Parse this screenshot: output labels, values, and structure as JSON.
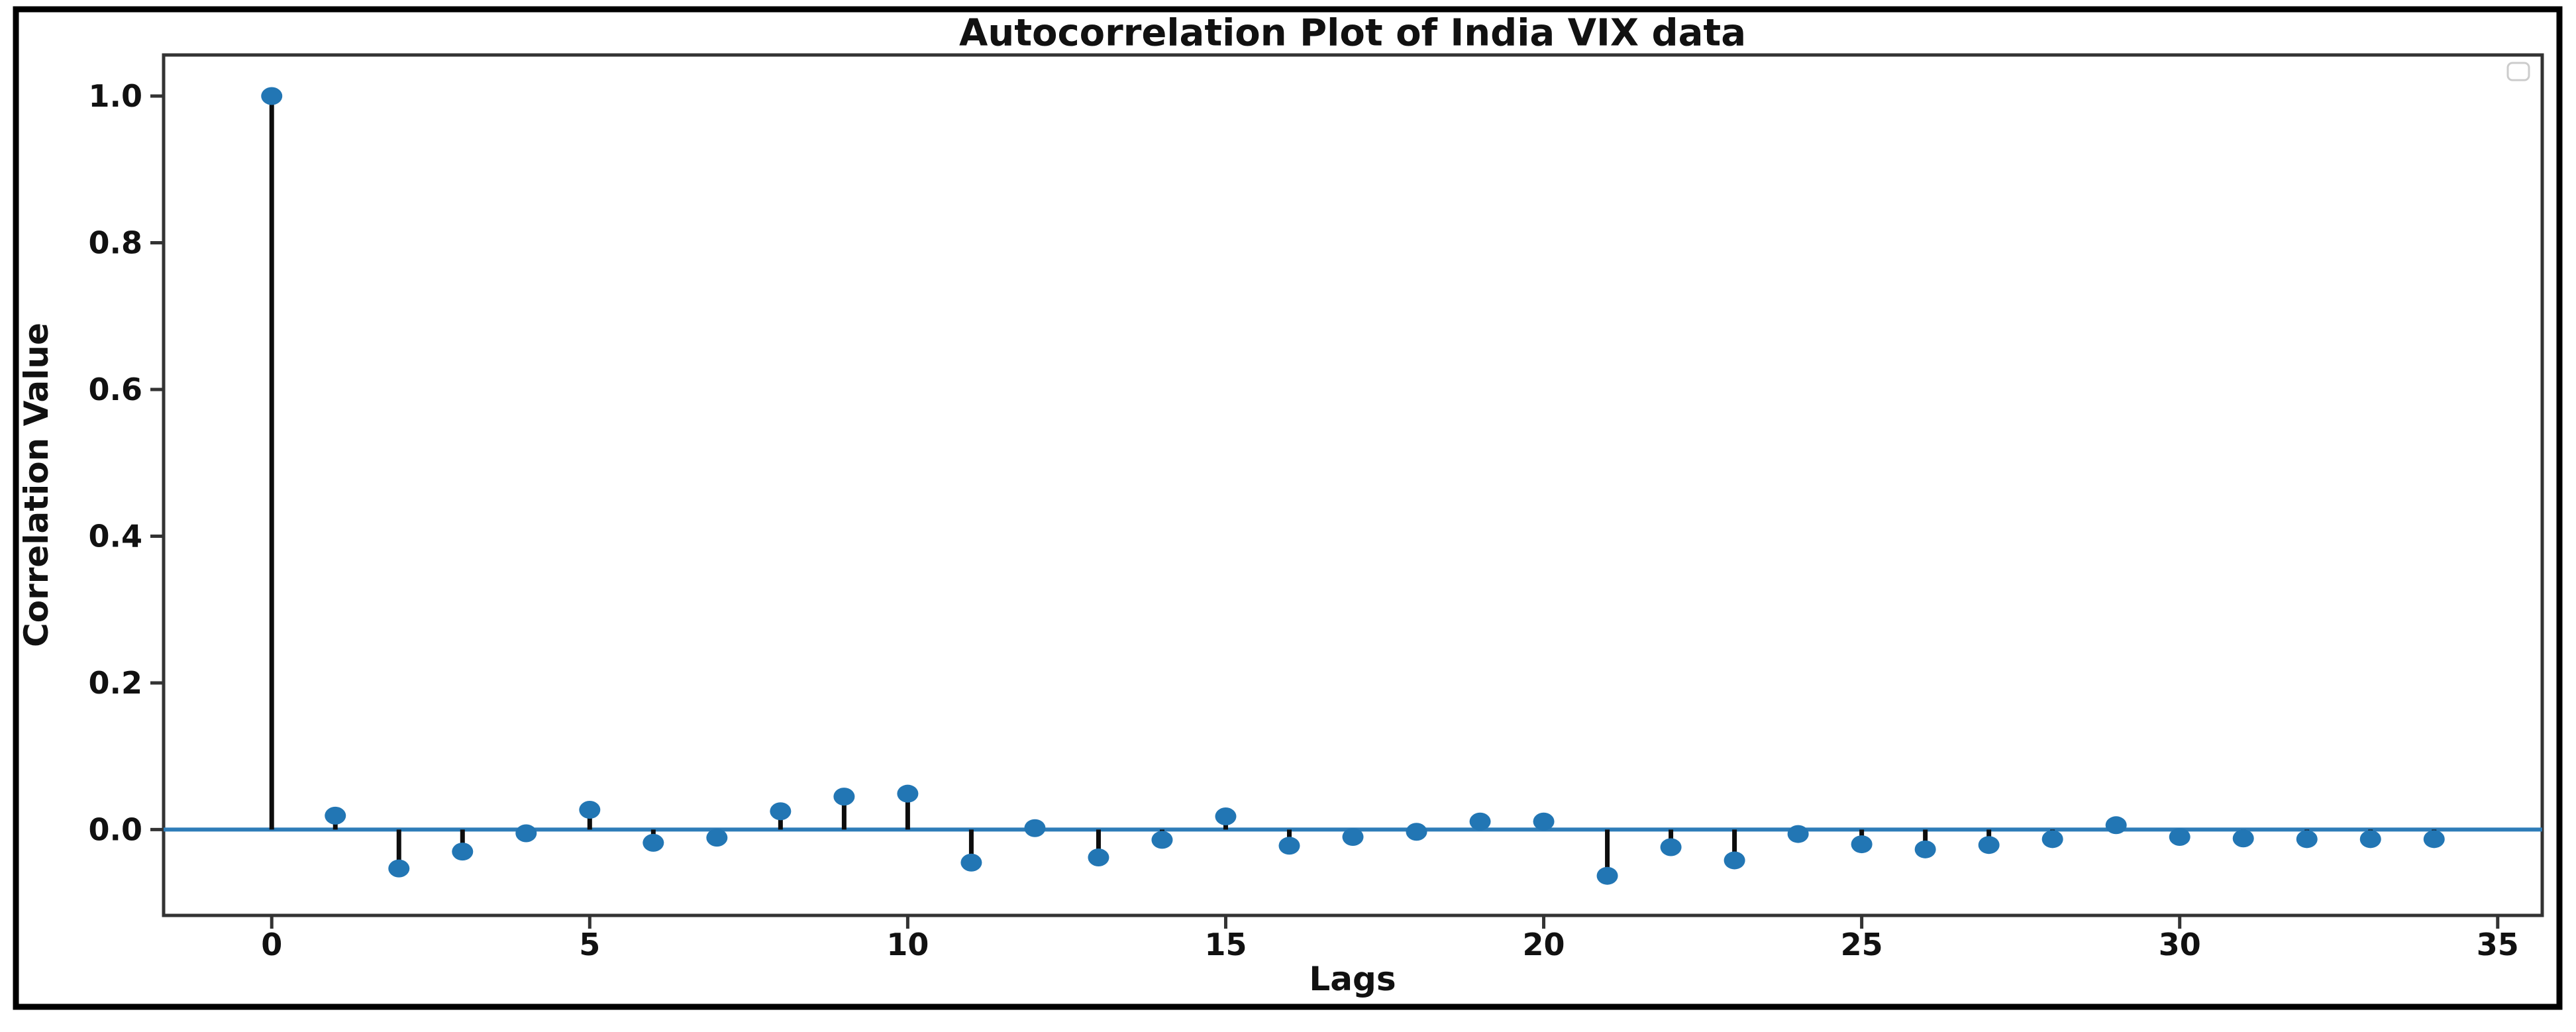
{
  "figure": {
    "background": "#ffffff",
    "border_color": "#000000"
  },
  "chart_data": {
    "type": "scatter",
    "subtype": "stem-plot (autocorrelation, markers on black stems with zero baseline)",
    "title": "Autocorrelation Plot of India VIX data",
    "xlabel": "Lags",
    "ylabel": "Correlation Value",
    "x": [
      0,
      1,
      2,
      3,
      4,
      5,
      6,
      7,
      8,
      9,
      10,
      11,
      12,
      13,
      14,
      15,
      16,
      17,
      18,
      19,
      20,
      21,
      22,
      23,
      24,
      25,
      26,
      27,
      28,
      29,
      30,
      31,
      32,
      33,
      34
    ],
    "values": [
      1.0,
      0.019,
      -0.053,
      -0.03,
      -0.005,
      0.027,
      -0.018,
      -0.011,
      0.025,
      0.045,
      0.049,
      -0.045,
      0.002,
      -0.038,
      -0.014,
      0.018,
      -0.022,
      -0.01,
      -0.003,
      0.011,
      0.011,
      -0.063,
      -0.024,
      -0.042,
      -0.006,
      -0.02,
      -0.027,
      -0.021,
      -0.013,
      0.006,
      -0.01,
      -0.012,
      -0.013,
      -0.013,
      -0.013
    ],
    "baseline": 0.0,
    "xlim": [
      -1.7,
      35.7
    ],
    "ylim": [
      -0.117,
      1.056
    ],
    "x_ticks": [
      0,
      5,
      10,
      15,
      20,
      25,
      30,
      35
    ],
    "y_ticks": [
      "0.0",
      "0.2",
      "0.4",
      "0.6",
      "0.8",
      "1.0"
    ],
    "grid": false,
    "legend": {
      "position": "upper right",
      "entries": [],
      "empty_box": true
    },
    "colors": {
      "marker": "#2276b4",
      "stem": "#0d0d0d",
      "baseline_line": "#2e7cb8",
      "spines": "#333333",
      "ticks": "#333333",
      "text": "#111111",
      "legend_border": "#cccccc",
      "figure_border": "#000000"
    }
  }
}
